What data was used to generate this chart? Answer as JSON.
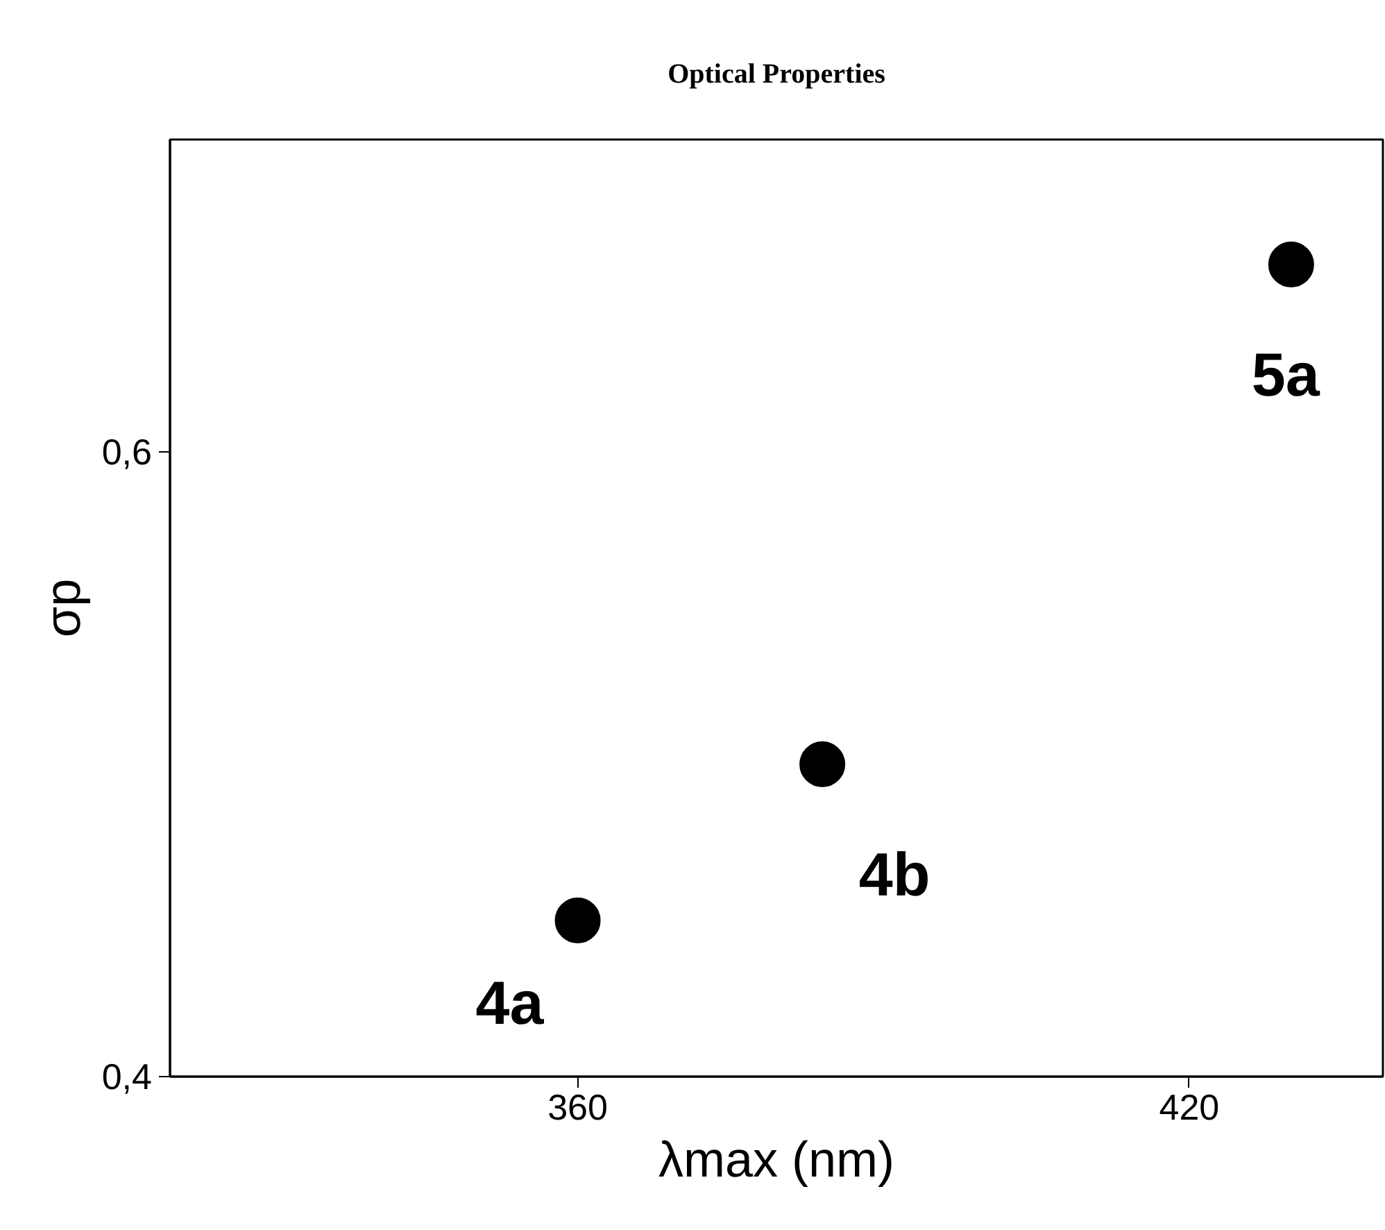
{
  "chart_data": {
    "type": "scatter",
    "title": "Optical Properties",
    "xlabel": "λmax (nm)",
    "ylabel": "σp",
    "x": [
      360,
      384,
      430
    ],
    "values": [
      0.45,
      0.5,
      0.66
    ],
    "color": "#000000",
    "marker": "circle",
    "xlim": [
      320,
      439
    ],
    "ylim": [
      0.4,
      0.7
    ],
    "xticks": [
      360,
      420
    ],
    "yticks": [
      {
        "value": 0.4,
        "label": "0,4"
      },
      {
        "value": 0.6,
        "label": "0,6"
      }
    ],
    "grid": false,
    "annotations": [
      {
        "text": "4a",
        "x": 360,
        "y": 0.45
      },
      {
        "text": "4b",
        "x": 384,
        "y": 0.5
      },
      {
        "text": "5a",
        "x": 430,
        "y": 0.66
      }
    ]
  }
}
